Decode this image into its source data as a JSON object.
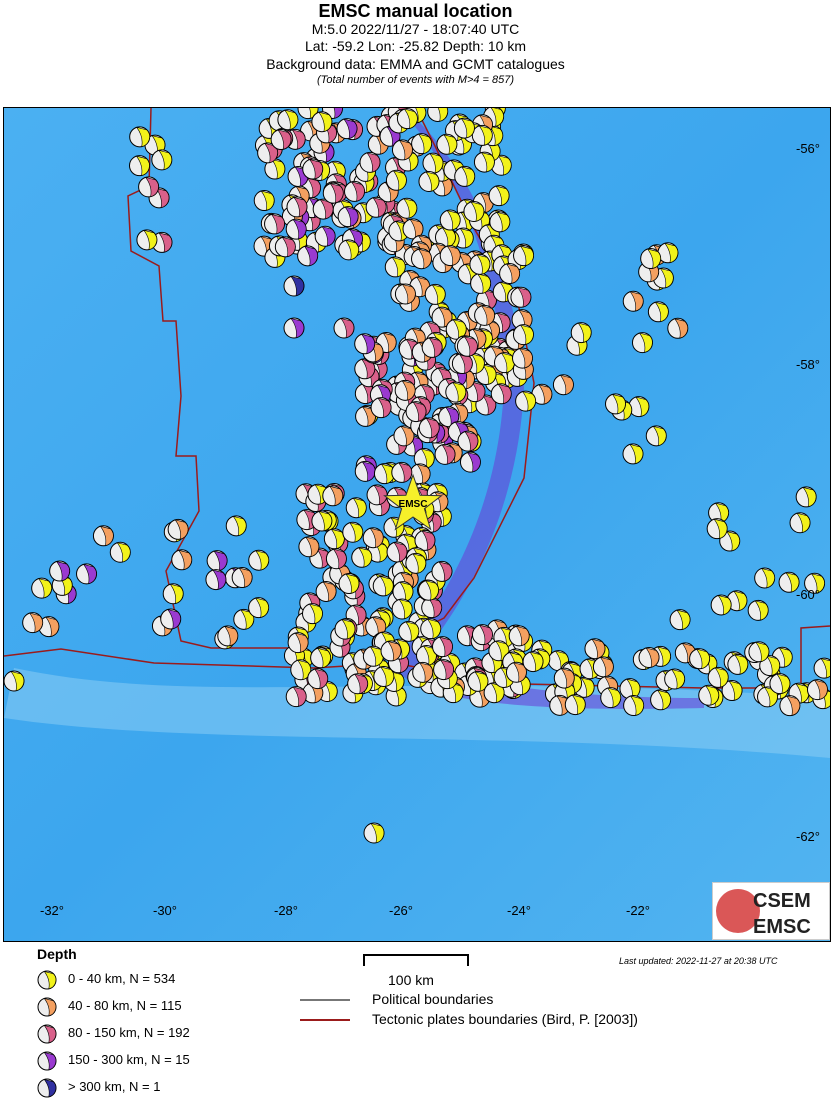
{
  "header": {
    "title": "EMSC manual location",
    "line1": "M:5.0 2022/11/27 - 18:07:40 UTC",
    "line2": "Lat: -59.2 Lon: -25.82 Depth: 10 km",
    "line3": "Background data: EMMA and GCMT catalogues",
    "line4": "(Total number of events with M>4 = 857)"
  },
  "map": {
    "epicenter_label": "EMSC",
    "epicenter": {
      "lat": -59.2,
      "lon": -25.82
    },
    "lon_ticks": [
      "-32°",
      "-30°",
      "-28°",
      "-26°",
      "-24°",
      "-22°"
    ],
    "lat_ticks": [
      "-56°",
      "-58°",
      "-60°",
      "-62°"
    ],
    "colors": {
      "ocean": "#3fa9f0",
      "trench": "#6a3bd6",
      "plate_boundary": "#9b1b1b",
      "political": "#777777"
    }
  },
  "legend": {
    "title": "Depth",
    "items": [
      {
        "label": "0 - 40 km, N = 534",
        "color": "#f2f21a"
      },
      {
        "label": "40 - 80 km, N = 115",
        "color": "#f4a060"
      },
      {
        "label": "80 - 150 km, N = 192",
        "color": "#d9608a"
      },
      {
        "label": "150 - 300 km, N = 15",
        "color": "#9a3ad0"
      },
      {
        "label": "> 300 km, N = 1",
        "color": "#3030a0"
      }
    ],
    "scale": "100 km",
    "political": "Political boundaries",
    "tectonic": "Tectonic plates boundaries (Bird, P. [2003])"
  },
  "updated": "Last updated: 2022-11-27 at 20:38 UTC",
  "logo": {
    "top": "CSEM",
    "bottom": "EMSC"
  }
}
